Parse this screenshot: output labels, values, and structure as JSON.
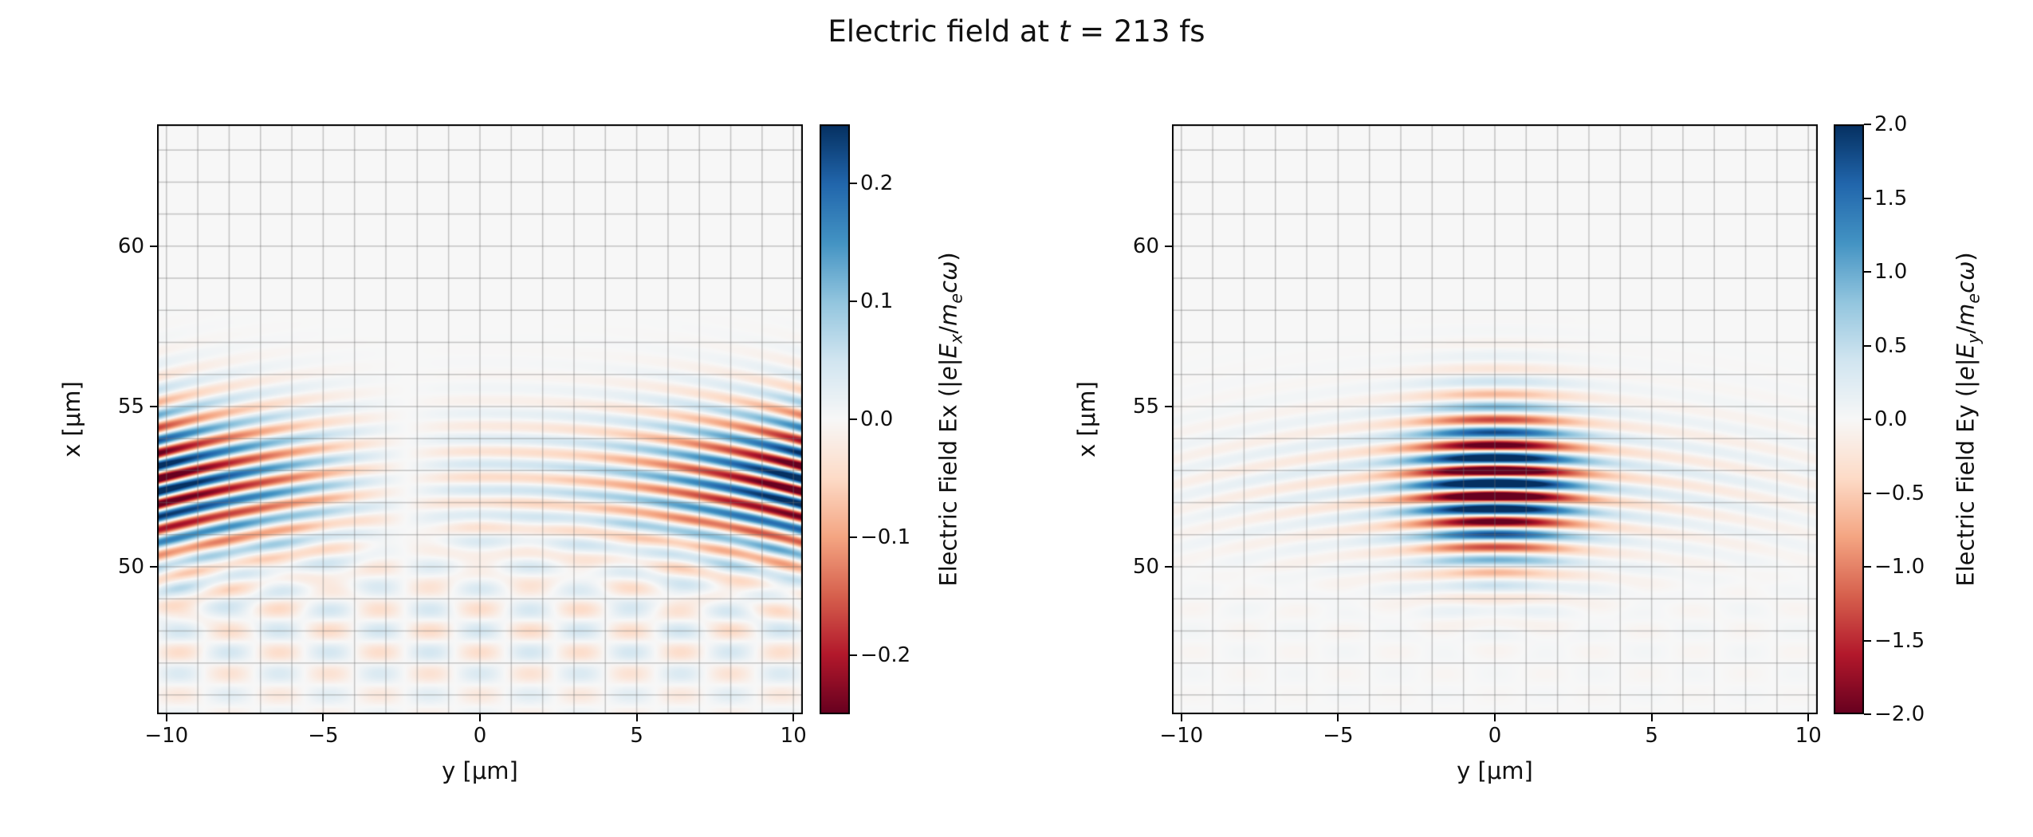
{
  "title_segments": [
    {
      "t": "Electric field at "
    },
    {
      "t": "t",
      "i": true
    },
    {
      "t": " = 213 fs"
    }
  ],
  "figure": {
    "background": "#ffffff",
    "grid_color": "rgba(110,110,110,0.38)"
  },
  "chart_data": [
    {
      "type": "heatmap",
      "component": "Ex",
      "xlabel": "y [μm]",
      "ylabel": "x [μm]",
      "xlim": [
        -10.3,
        10.3
      ],
      "ylim": [
        45.4,
        63.8
      ],
      "xticks": {
        "values": [
          -10,
          -5,
          0,
          5,
          10
        ],
        "labels": [
          "−10",
          "−5",
          "0",
          "5",
          "10"
        ]
      },
      "yticks": {
        "values": [
          50,
          55,
          60
        ],
        "labels": [
          "50",
          "55",
          "60"
        ]
      },
      "grid": {
        "step": 1,
        "color": "rgba(110,110,110,0.38)"
      },
      "colormap": "RdBu",
      "colorbar": {
        "vmin": -0.25,
        "vmax": 0.25,
        "ticks": {
          "values": [
            0.2,
            0.1,
            0.0,
            -0.1,
            -0.2
          ],
          "labels": [
            "0.2",
            "0.1",
            "0.0",
            "−0.1",
            "−0.2"
          ]
        },
        "label_segments": [
          {
            "t": "Electric Field Ex (|"
          },
          {
            "t": "e",
            "i": true
          },
          {
            "t": "|"
          },
          {
            "t": "E",
            "i": true
          },
          {
            "t": "x",
            "i": true,
            "sub": true
          },
          {
            "t": "/"
          },
          {
            "t": "m",
            "i": true
          },
          {
            "t": "e",
            "i": true,
            "sub": true
          },
          {
            "t": "c",
            "i": true
          },
          {
            "t": "ω",
            "i": true
          },
          {
            "t": ")"
          }
        ]
      },
      "field_model": {
        "kind": "gaussian_laser_pulse",
        "center_x_um": 52.6,
        "sigma_x_um": 1.6,
        "wavelength_um": 0.8,
        "wavefront_curvature_um": 42,
        "phase": 1.5708,
        "amplitude": 0.3,
        "transverse": "odd_edge",
        "odd_power": 0.6,
        "even_frac": 0.15,
        "even_sigma_um": 2.5,
        "scatter": {
          "amp_frac": 0.16,
          "x_center": 48.0,
          "x_sigma": 1.9,
          "period_y": 3.2,
          "period_x": 1.35
        }
      }
    },
    {
      "type": "heatmap",
      "component": "Ey",
      "xlabel": "y [μm]",
      "ylabel": "x [μm]",
      "xlim": [
        -10.3,
        10.3
      ],
      "ylim": [
        45.4,
        63.8
      ],
      "xticks": {
        "values": [
          -10,
          -5,
          0,
          5,
          10
        ],
        "labels": [
          "−10",
          "−5",
          "0",
          "5",
          "10"
        ]
      },
      "yticks": {
        "values": [
          50,
          55,
          60
        ],
        "labels": [
          "50",
          "55",
          "60"
        ]
      },
      "grid": {
        "step": 1,
        "color": "rgba(110,110,110,0.38)"
      },
      "colormap": "RdBu",
      "colorbar": {
        "vmin": -2.0,
        "vmax": 2.0,
        "ticks": {
          "values": [
            2.0,
            1.5,
            1.0,
            0.5,
            0.0,
            -0.5,
            -1.0,
            -1.5,
            -2.0
          ],
          "labels": [
            "2.0",
            "1.5",
            "1.0",
            "0.5",
            "0.0",
            "−0.5",
            "−1.0",
            "−1.5",
            "−2.0"
          ]
        },
        "label_segments": [
          {
            "t": "Electric Field Ey (|"
          },
          {
            "t": "e",
            "i": true
          },
          {
            "t": "|"
          },
          {
            "t": "E",
            "i": true
          },
          {
            "t": "y",
            "i": true,
            "sub": true
          },
          {
            "t": "/"
          },
          {
            "t": "m",
            "i": true
          },
          {
            "t": "e",
            "i": true,
            "sub": true
          },
          {
            "t": "c",
            "i": true
          },
          {
            "t": "ω",
            "i": true
          },
          {
            "t": ")"
          }
        ]
      },
      "field_model": {
        "kind": "gaussian_laser_pulse",
        "center_x_um": 52.6,
        "sigma_x_um": 1.6,
        "wavelength_um": 0.8,
        "wavefront_curvature_um": 42,
        "phase": 0,
        "amplitude": 2.6,
        "transverse": "center",
        "core_sigma_um": 1.7,
        "wing_frac": 0.14,
        "wing_sigma_um": 6.5,
        "scatter": {
          "amp_frac": 0.02,
          "x_center": 48.0,
          "x_sigma": 1.9,
          "period_y": 3.2,
          "period_x": 1.35
        }
      }
    }
  ]
}
